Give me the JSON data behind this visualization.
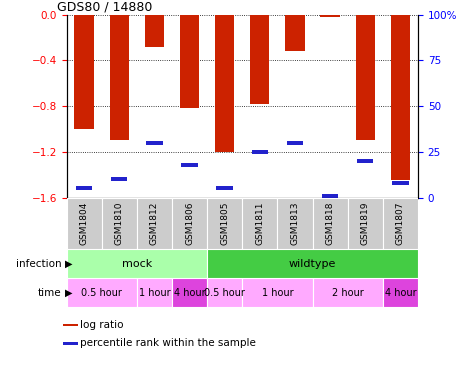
{
  "title": "GDS80 / 14880",
  "samples": [
    "GSM1804",
    "GSM1810",
    "GSM1812",
    "GSM1806",
    "GSM1805",
    "GSM1811",
    "GSM1813",
    "GSM1818",
    "GSM1819",
    "GSM1807"
  ],
  "log_ratios": [
    -1.0,
    -1.1,
    -0.28,
    -0.82,
    -1.2,
    -0.78,
    -0.32,
    -0.02,
    -1.1,
    -1.45
  ],
  "percentile_ranks": [
    5,
    10,
    30,
    18,
    5,
    25,
    30,
    1,
    20,
    8
  ],
  "ylim_left": [
    -1.6,
    0.0
  ],
  "ylim_right": [
    0,
    100
  ],
  "yticks_left": [
    0.0,
    -0.4,
    -0.8,
    -1.2,
    -1.6
  ],
  "yticks_right": [
    0,
    25,
    50,
    75,
    100
  ],
  "bar_color": "#cc2200",
  "marker_color": "#2222cc",
  "bar_width": 0.55,
  "infection_groups": [
    {
      "label": "mock",
      "start": 0,
      "end": 4,
      "color": "#aaffaa"
    },
    {
      "label": "wildtype",
      "start": 4,
      "end": 10,
      "color": "#44cc44"
    }
  ],
  "time_groups": [
    {
      "label": "0.5 hour",
      "start": 0,
      "end": 2,
      "color": "#ffaaff"
    },
    {
      "label": "1 hour",
      "start": 2,
      "end": 3,
      "color": "#ffaaff"
    },
    {
      "label": "4 hour",
      "start": 3,
      "end": 4,
      "color": "#dd44dd"
    },
    {
      "label": "0.5 hour",
      "start": 4,
      "end": 5,
      "color": "#ffaaff"
    },
    {
      "label": "1 hour",
      "start": 5,
      "end": 7,
      "color": "#ffaaff"
    },
    {
      "label": "2 hour",
      "start": 7,
      "end": 9,
      "color": "#ffaaff"
    },
    {
      "label": "4 hour",
      "start": 9,
      "end": 10,
      "color": "#dd44dd"
    }
  ],
  "legend_items": [
    {
      "color": "#cc2200",
      "label": "log ratio"
    },
    {
      "color": "#2222cc",
      "label": "percentile rank within the sample"
    }
  ],
  "fig_width": 4.75,
  "fig_height": 3.66,
  "dpi": 100
}
